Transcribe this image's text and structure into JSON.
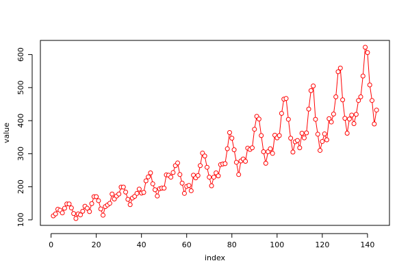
{
  "chart_data": {
    "type": "line",
    "x_label": "index",
    "y_label": "value",
    "color": "#ff0000",
    "x": [
      1,
      2,
      3,
      4,
      5,
      6,
      7,
      8,
      9,
      10,
      11,
      12,
      13,
      14,
      15,
      16,
      17,
      18,
      19,
      20,
      21,
      22,
      23,
      24,
      25,
      26,
      27,
      28,
      29,
      30,
      31,
      32,
      33,
      34,
      35,
      36,
      37,
      38,
      39,
      40,
      41,
      42,
      43,
      44,
      45,
      46,
      47,
      48,
      49,
      50,
      51,
      52,
      53,
      54,
      55,
      56,
      57,
      58,
      59,
      60,
      61,
      62,
      63,
      64,
      65,
      66,
      67,
      68,
      69,
      70,
      71,
      72,
      73,
      74,
      75,
      76,
      77,
      78,
      79,
      80,
      81,
      82,
      83,
      84,
      85,
      86,
      87,
      88,
      89,
      90,
      91,
      92,
      93,
      94,
      95,
      96,
      97,
      98,
      99,
      100,
      101,
      102,
      103,
      104,
      105,
      106,
      107,
      108,
      109,
      110,
      111,
      112,
      113,
      114,
      115,
      116,
      117,
      118,
      119,
      120,
      121,
      122,
      123,
      124,
      125,
      126,
      127,
      128,
      129,
      130,
      131,
      132,
      133,
      134,
      135,
      136,
      137,
      138,
      139,
      140,
      141,
      142,
      143,
      144
    ],
    "values": [
      112,
      118,
      132,
      129,
      121,
      135,
      148,
      148,
      136,
      119,
      104,
      118,
      115,
      126,
      141,
      135,
      125,
      149,
      170,
      170,
      158,
      133,
      114,
      140,
      145,
      150,
      178,
      163,
      172,
      178,
      199,
      199,
      184,
      162,
      146,
      166,
      171,
      180,
      193,
      181,
      183,
      218,
      230,
      242,
      209,
      191,
      172,
      194,
      196,
      196,
      236,
      235,
      229,
      243,
      264,
      272,
      237,
      211,
      180,
      201,
      204,
      188,
      235,
      227,
      234,
      264,
      302,
      293,
      259,
      229,
      203,
      229,
      242,
      233,
      267,
      269,
      270,
      315,
      364,
      347,
      312,
      274,
      237,
      278,
      284,
      277,
      317,
      313,
      318,
      374,
      413,
      405,
      355,
      306,
      271,
      306,
      315,
      301,
      356,
      348,
      355,
      422,
      465,
      467,
      404,
      347,
      305,
      336,
      340,
      318,
      362,
      348,
      363,
      435,
      491,
      505,
      404,
      359,
      310,
      337,
      360,
      342,
      406,
      396,
      420,
      472,
      548,
      559,
      463,
      407,
      362,
      405,
      417,
      391,
      419,
      461,
      472,
      535,
      622,
      606,
      508,
      461,
      390,
      432
    ],
    "xlim": [
      -4.72,
      149.72
    ],
    "ylim": [
      83.28,
      642.72
    ],
    "xticks": [
      0,
      20,
      40,
      60,
      80,
      100,
      120,
      140
    ],
    "yticks": [
      100,
      200,
      300,
      400,
      500,
      600
    ]
  }
}
